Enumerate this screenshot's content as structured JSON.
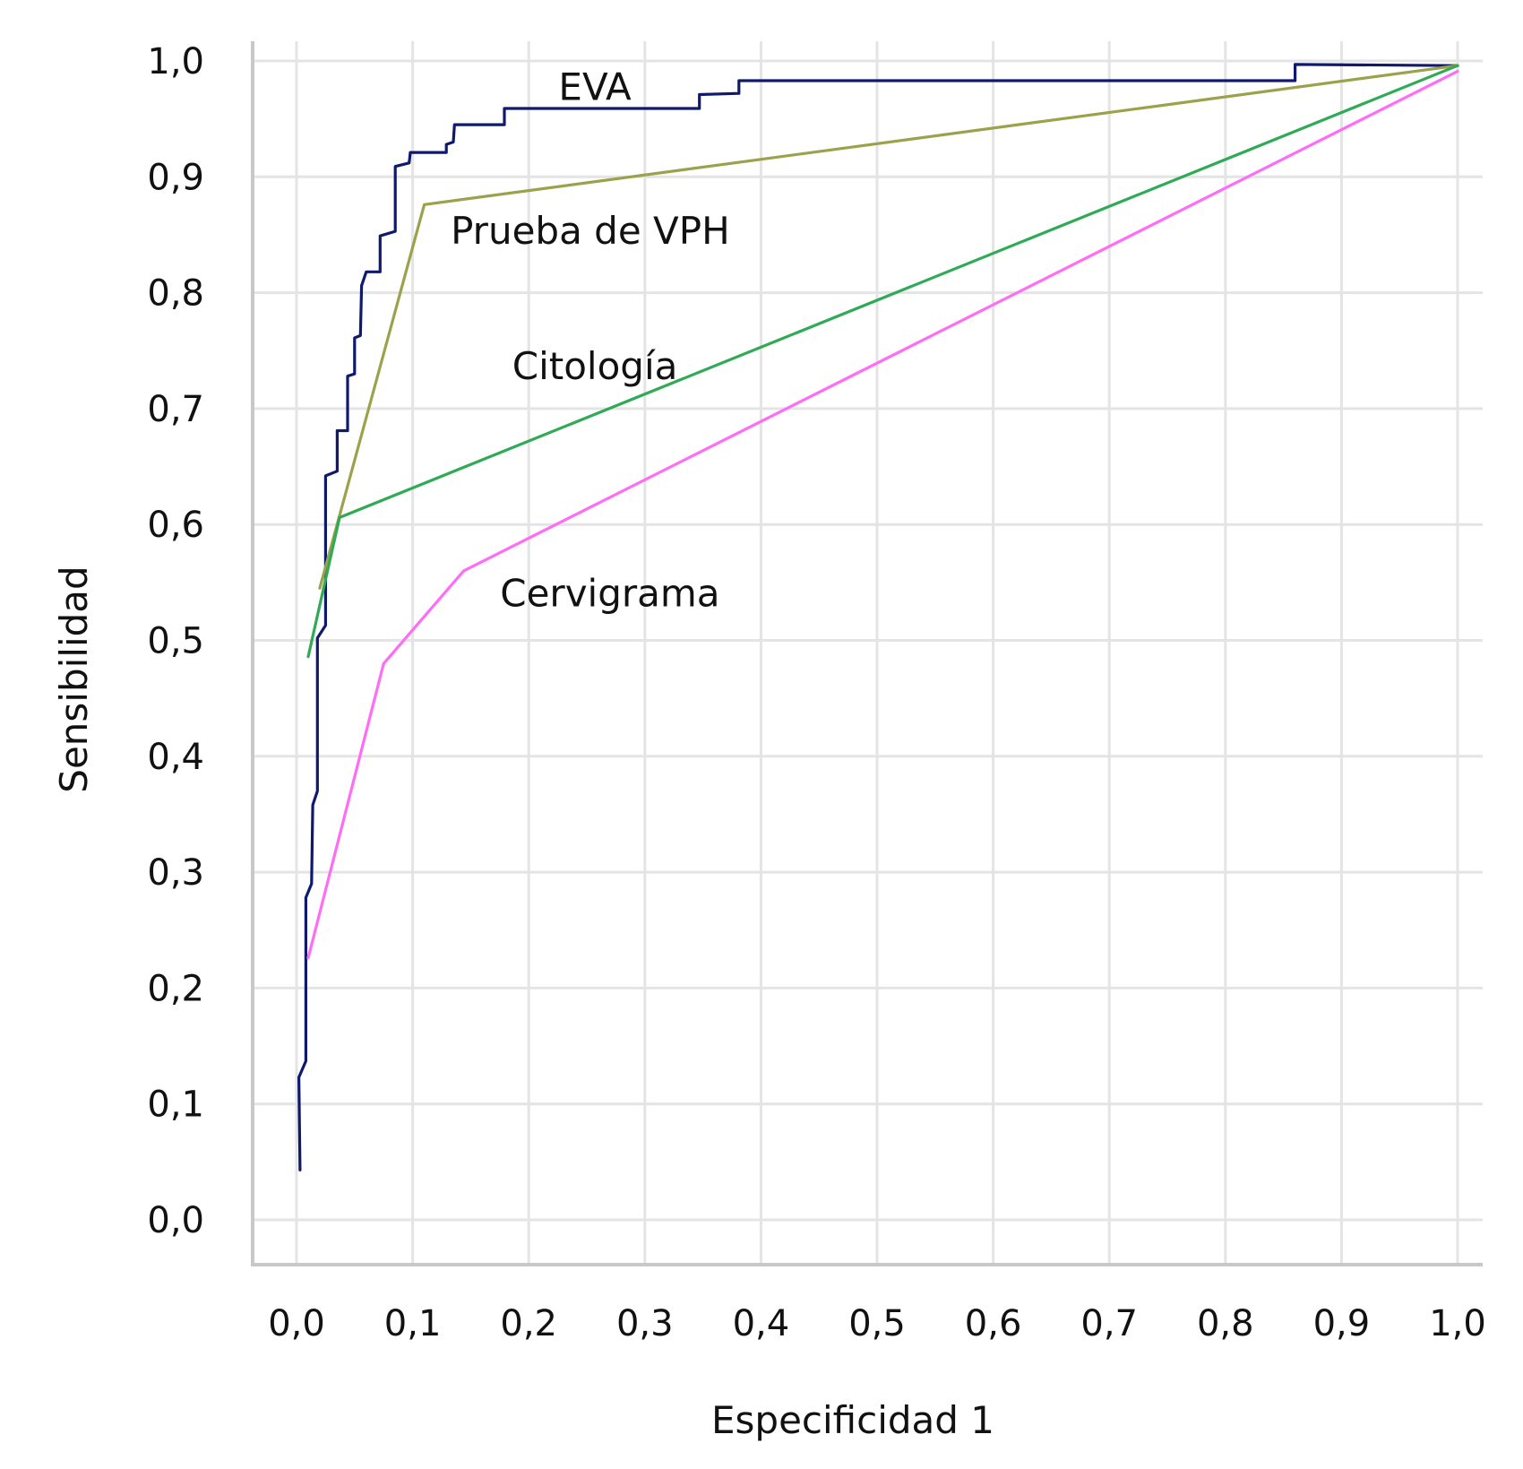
{
  "chart_data": {
    "type": "line",
    "title": "",
    "xlabel": "Especificidad 1",
    "ylabel": "Sensibilidad",
    "xlim": [
      0,
      1
    ],
    "ylim": [
      0,
      1
    ],
    "x_ticks": [
      "0,0",
      "0,1",
      "0,2",
      "0,3",
      "0,4",
      "0,5",
      "0,6",
      "0,7",
      "0,8",
      "0,9",
      "1,0"
    ],
    "y_ticks": [
      "0,0",
      "0,1",
      "0,2",
      "0,3",
      "0,4",
      "0,5",
      "0,6",
      "0,7",
      "0,8",
      "0,9",
      "1,0"
    ],
    "grid": true,
    "legend": "none",
    "series": [
      {
        "name": "EVA",
        "color": "#0f1a6e",
        "points": [
          [
            0.003,
            0.043
          ],
          [
            0.002,
            0.123
          ],
          [
            0.008,
            0.137
          ],
          [
            0.008,
            0.278
          ],
          [
            0.013,
            0.29
          ],
          [
            0.014,
            0.358
          ],
          [
            0.018,
            0.37
          ],
          [
            0.018,
            0.502
          ],
          [
            0.025,
            0.513
          ],
          [
            0.025,
            0.642
          ],
          [
            0.035,
            0.646
          ],
          [
            0.035,
            0.681
          ],
          [
            0.044,
            0.681
          ],
          [
            0.044,
            0.728
          ],
          [
            0.05,
            0.73
          ],
          [
            0.05,
            0.761
          ],
          [
            0.055,
            0.763
          ],
          [
            0.056,
            0.806
          ],
          [
            0.06,
            0.818
          ],
          [
            0.072,
            0.818
          ],
          [
            0.072,
            0.849
          ],
          [
            0.085,
            0.853
          ],
          [
            0.085,
            0.909
          ],
          [
            0.097,
            0.912
          ],
          [
            0.098,
            0.921
          ],
          [
            0.129,
            0.921
          ],
          [
            0.129,
            0.928
          ],
          [
            0.135,
            0.93
          ],
          [
            0.136,
            0.945
          ],
          [
            0.179,
            0.945
          ],
          [
            0.179,
            0.959
          ],
          [
            0.347,
            0.959
          ],
          [
            0.347,
            0.971
          ],
          [
            0.381,
            0.972
          ],
          [
            0.381,
            0.983
          ],
          [
            0.86,
            0.983
          ],
          [
            0.86,
            0.997
          ],
          [
            1.0,
            0.996
          ]
        ]
      },
      {
        "name": "Prueba de VPH",
        "color": "#9aa24b",
        "points": [
          [
            0.02,
            0.545
          ],
          [
            0.11,
            0.876
          ],
          [
            1.0,
            0.996
          ]
        ]
      },
      {
        "name": "Citología",
        "color": "#2faa55",
        "points": [
          [
            0.01,
            0.486
          ],
          [
            0.037,
            0.606
          ],
          [
            1.0,
            0.996
          ]
        ]
      },
      {
        "name": "Cervigrama",
        "color": "#ff6cf5",
        "points": [
          [
            0.01,
            0.226
          ],
          [
            0.075,
            0.48
          ],
          [
            0.144,
            0.56
          ],
          [
            1.0,
            0.991
          ]
        ]
      }
    ],
    "annotations": [
      {
        "text": "EVA",
        "x": 0.257,
        "y": 0.978
      },
      {
        "text": "Prueba de VPH",
        "x": 0.253,
        "y": 0.854
      },
      {
        "text": "Citología",
        "x": 0.257,
        "y": 0.737
      },
      {
        "text": "Cervigrama",
        "x": 0.27,
        "y": 0.541
      }
    ]
  }
}
